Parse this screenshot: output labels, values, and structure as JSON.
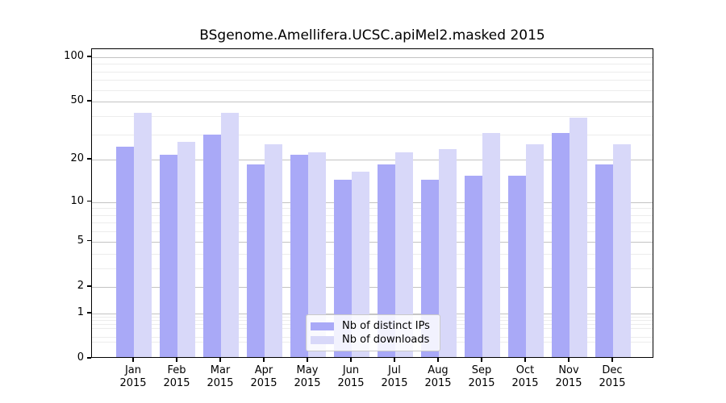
{
  "title": "BSgenome.Amellifera.UCSC.apiMel2.masked 2015",
  "chart_data": {
    "type": "bar",
    "title": "BSgenome.Amellifera.UCSC.apiMel2.masked 2015",
    "categories": [
      "Jan",
      "Feb",
      "Mar",
      "Apr",
      "May",
      "Jun",
      "Jul",
      "Aug",
      "Sep",
      "Oct",
      "Nov",
      "Dec"
    ],
    "category_sublabel": "2015",
    "series": [
      {
        "name": "Nb of distinct IPs",
        "color": "#a9a9f7",
        "values": [
          24,
          21,
          29,
          18,
          21,
          14,
          18,
          14,
          15,
          15,
          30,
          18
        ]
      },
      {
        "name": "Nb of downloads",
        "color": "#d8d8f9",
        "values": [
          41,
          26,
          41,
          25,
          22,
          16,
          22,
          23,
          30,
          25,
          38,
          25
        ]
      }
    ],
    "yscale": "log1p",
    "ylim": [
      0,
      113
    ],
    "yticks_major": [
      100,
      50,
      20,
      10,
      5,
      2,
      1,
      0
    ],
    "gridlines_minor": [
      90,
      80,
      70,
      60,
      40,
      30,
      9,
      8,
      7,
      6,
      4,
      3,
      0.9,
      0.8,
      0.7,
      0.6,
      0.4,
      0.3
    ],
    "grid": "on",
    "legend_position": "bottom-center",
    "colors": {
      "grid_major": "#c3c3c3",
      "grid_minor": "#ececec",
      "spine": "#000000",
      "background": "#ffffff"
    }
  },
  "legend": {
    "entries": [
      "Nb of distinct IPs",
      "Nb of downloads"
    ]
  }
}
